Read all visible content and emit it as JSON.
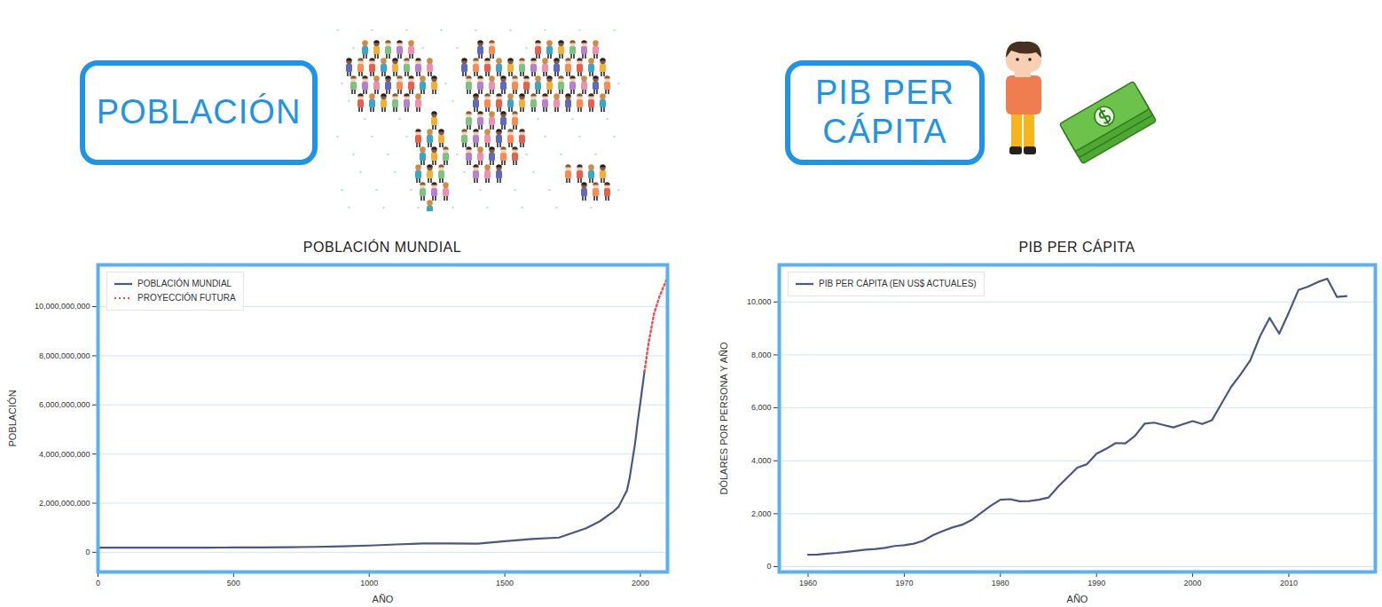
{
  "chart_data": [
    {
      "type": "line",
      "heading": "POBLACIÓN",
      "title": "POBLACIÓN MUNDIAL",
      "xlabel": "AÑO",
      "ylabel": "POBLACIÓN",
      "x": [
        0,
        200,
        400,
        500,
        600,
        700,
        800,
        900,
        1000,
        1100,
        1200,
        1300,
        1400,
        1500,
        1600,
        1700,
        1750,
        1800,
        1850,
        1900,
        1920,
        1940,
        1950,
        1960,
        1970,
        1980,
        1990,
        2000,
        2015,
        2030,
        2050,
        2070,
        2100
      ],
      "series": [
        {
          "name": "POBLACIÓN MUNDIAL",
          "color": "#4a5686",
          "line_style": "solid",
          "values": [
            190000000,
            190000000,
            190000000,
            195000000,
            200000000,
            210000000,
            220000000,
            240000000,
            275000000,
            320000000,
            360000000,
            360000000,
            350000000,
            450000000,
            540000000,
            600000000,
            790000000,
            980000000,
            1260000000,
            1650000000,
            1860000000,
            2300000000,
            2500000000,
            3000000000,
            3700000000,
            4400000000,
            5300000000,
            6100000000,
            7350000000,
            null,
            null,
            null,
            null
          ]
        },
        {
          "name": "PROYECCIÓN FUTURA",
          "color": "#e8504a",
          "line_style": "dotted",
          "values": [
            null,
            null,
            null,
            null,
            null,
            null,
            null,
            null,
            null,
            null,
            null,
            null,
            null,
            null,
            null,
            null,
            null,
            null,
            null,
            null,
            null,
            null,
            null,
            null,
            null,
            null,
            null,
            null,
            7350000000,
            8500000000,
            9700000000,
            10400000000,
            11200000000
          ]
        }
      ],
      "xlim": [
        0,
        2100
      ],
      "xticks": [
        0,
        500,
        1000,
        1500,
        2000
      ],
      "ylim": [
        -800000000,
        11700000000
      ],
      "yticks": [
        0,
        {
          "value": 2000000000,
          "label": "2,000,000,000"
        },
        {
          "value": 4000000000,
          "label": "4,000,000,000"
        },
        {
          "value": 6000000000,
          "label": "6,000,000,000"
        },
        {
          "value": 8000000000,
          "label": "8,000,000,000"
        },
        {
          "value": 10000000000,
          "label": "10,000,000,000"
        }
      ],
      "grid": true,
      "legend": "top-left"
    },
    {
      "type": "line",
      "heading": "PIB PER CÁPITA",
      "title": "PIB PER CÁPITA",
      "xlabel": "AÑO",
      "ylabel": "DÓLARES POR PERSONA Y AÑO",
      "x": [
        1960,
        1961,
        1962,
        1963,
        1964,
        1965,
        1966,
        1967,
        1968,
        1969,
        1970,
        1971,
        1972,
        1973,
        1974,
        1975,
        1976,
        1977,
        1978,
        1979,
        1980,
        1981,
        1982,
        1983,
        1984,
        1985,
        1986,
        1987,
        1988,
        1989,
        1990,
        1991,
        1992,
        1993,
        1994,
        1995,
        1996,
        1997,
        1998,
        1999,
        2000,
        2001,
        2002,
        2003,
        2004,
        2005,
        2006,
        2007,
        2008,
        2009,
        2010,
        2011,
        2012,
        2013,
        2014,
        2015,
        2016
      ],
      "series": [
        {
          "name": "PIB PER CÁPITA (EN US$ ACTUALES)",
          "color": "#4a5686",
          "line_style": "solid",
          "values": [
            450,
            460,
            490,
            520,
            560,
            600,
            640,
            670,
            710,
            780,
            810,
            870,
            980,
            1190,
            1340,
            1480,
            1580,
            1760,
            2030,
            2300,
            2530,
            2550,
            2470,
            2480,
            2530,
            2610,
            3020,
            3380,
            3740,
            3870,
            4270,
            4450,
            4670,
            4660,
            4940,
            5400,
            5440,
            5350,
            5260,
            5380,
            5500,
            5390,
            5530,
            6160,
            6790,
            7270,
            7800,
            8700,
            9400,
            8800,
            9600,
            10450,
            10580,
            10750,
            10880,
            10190,
            10220
          ]
        }
      ],
      "xlim": [
        1957,
        2019
      ],
      "xticks": [
        1960,
        1970,
        1980,
        1990,
        2000,
        2010
      ],
      "ylim": [
        -200,
        11400
      ],
      "yticks": [
        0,
        {
          "value": 2000,
          "label": "2,000"
        },
        {
          "value": 4000,
          "label": "4,000"
        },
        {
          "value": 6000,
          "label": "6,000"
        },
        {
          "value": 8000,
          "label": "8,000"
        },
        {
          "value": 10000,
          "label": "10,000"
        }
      ],
      "grid": true,
      "legend": "top-left"
    }
  ]
}
